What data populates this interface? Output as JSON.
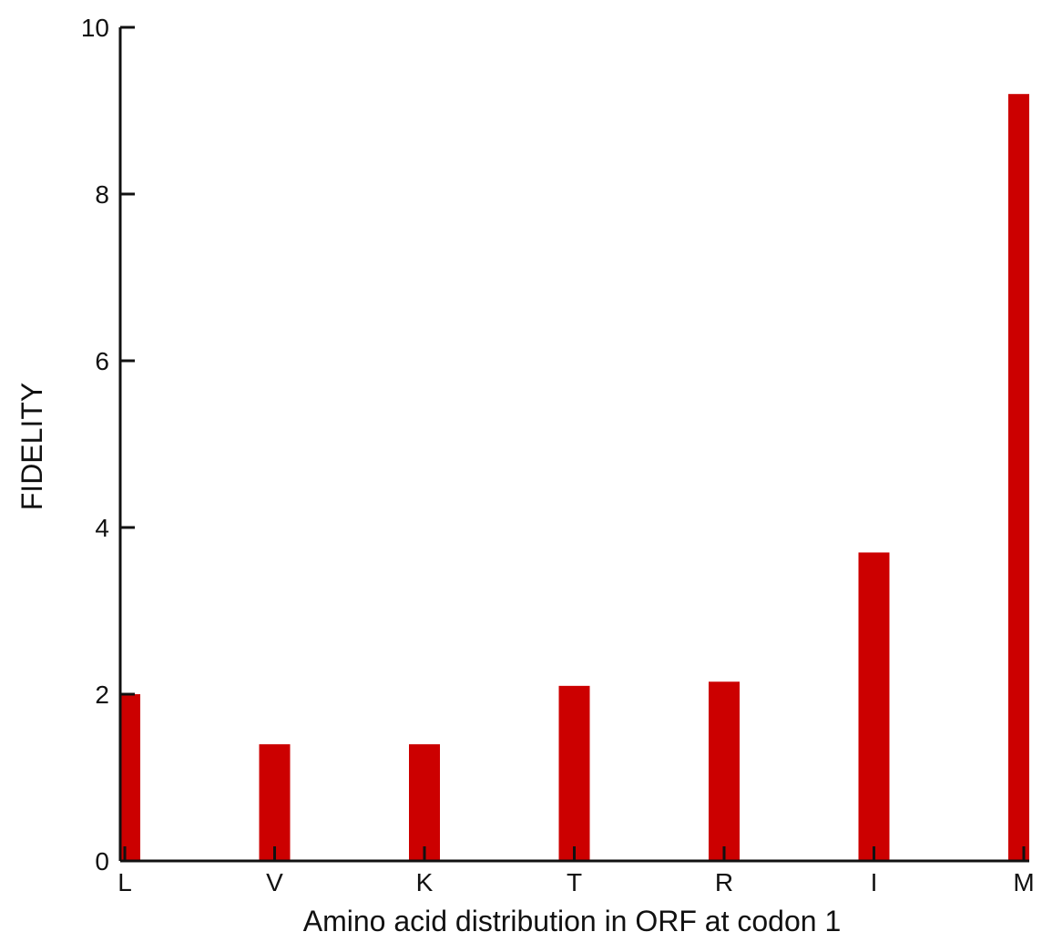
{
  "chart_data": {
    "type": "bar",
    "title": "",
    "xlabel": "Amino acid distribution in ORF at codon 1",
    "ylabel": "FIDELITY",
    "categories": [
      "L",
      "V",
      "K",
      "T",
      "R",
      "I",
      "M"
    ],
    "values": [
      2.0,
      1.4,
      1.4,
      2.1,
      2.15,
      3.7,
      9.2
    ],
    "ylim": [
      0,
      10
    ],
    "yticks": [
      "0",
      "2",
      "4",
      "6",
      "8",
      "10"
    ],
    "grid": false,
    "bar_color": "#cc0000",
    "axis_color": "#111111"
  }
}
